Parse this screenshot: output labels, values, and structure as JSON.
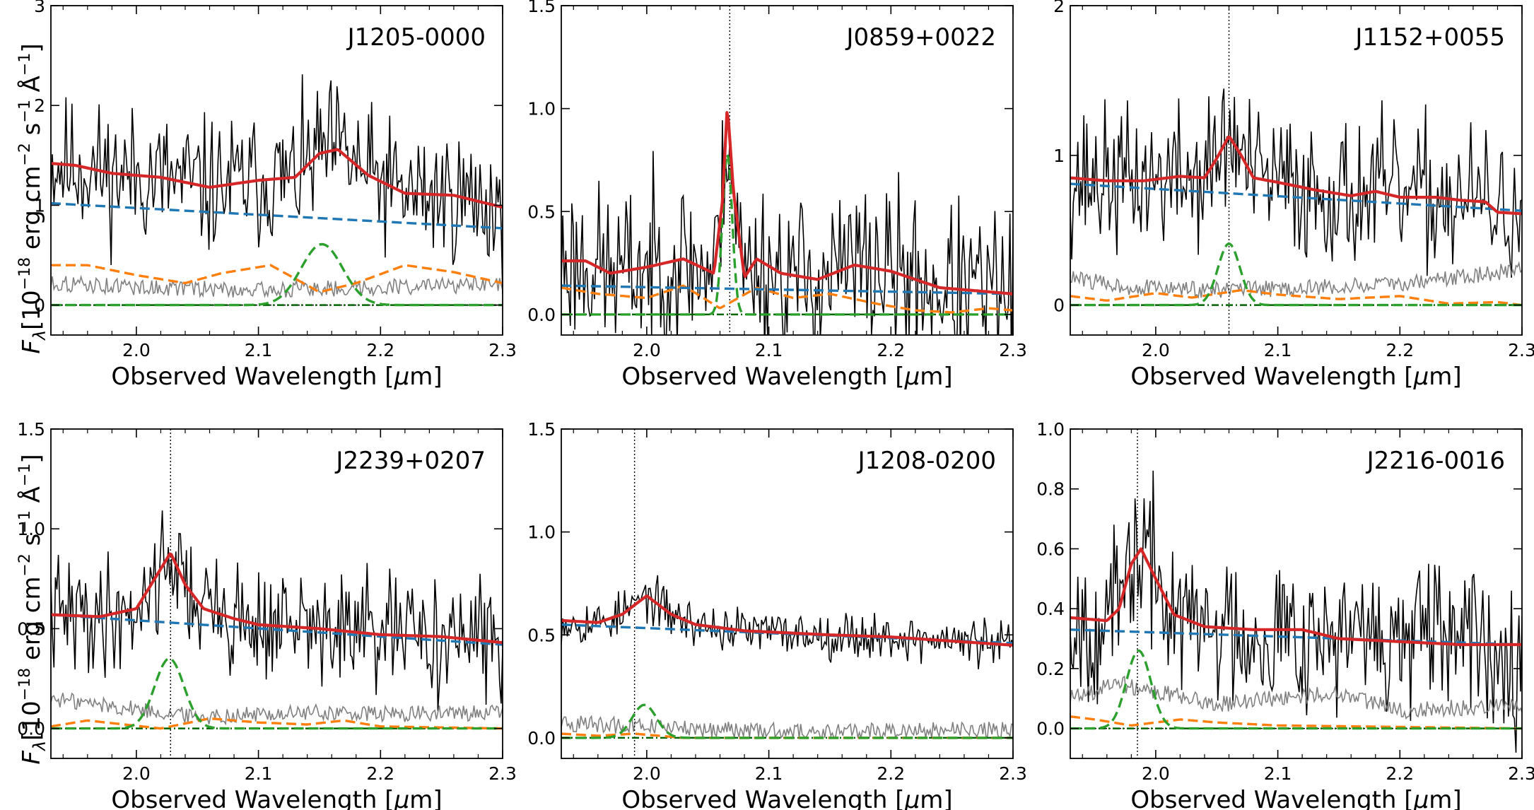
{
  "figure": {
    "ylabel_prefix": "F",
    "ylabel_sub": "λ",
    "ylabel_rest": "[10",
    "ylabel_exp": "−18",
    "ylabel_unit": " erg cm",
    "ylabel_cm_exp": "−2",
    "ylabel_s": " s",
    "ylabel_s_exp": "−1",
    "ylabel_A": " Å",
    "ylabel_A_exp": "−1",
    "ylabel_close": "]",
    "xlabel_text": "Observed Wavelength [",
    "xlabel_mu": "μ",
    "xlabel_unit": "m]"
  },
  "colors": {
    "data": "#000000",
    "noise": "#808080",
    "total_fit": "#d62728",
    "continuum": "#1f77b4",
    "feii": "#ff7f0e",
    "line": "#2ca02c",
    "zero": "#006400"
  },
  "chart_data": [
    {
      "type": "line",
      "title": "J1205-0000",
      "xlabel": "Observed Wavelength [μm]",
      "ylabel": "Fλ[10−18 erg cm−2 s−1 Å−1]",
      "xlim": [
        1.93,
        2.3
      ],
      "ylim": [
        -0.3,
        3.0
      ],
      "xticks": [
        2.0,
        2.1,
        2.2,
        2.3
      ],
      "xtick_labels": [
        "2.0",
        "2.1",
        "2.2",
        "2.3"
      ],
      "yticks": [
        0,
        1,
        2,
        3
      ],
      "ytick_labels": [
        "0",
        "1",
        "2",
        "3"
      ],
      "vline": null,
      "seed": 11,
      "data_noise": 0.42,
      "continuum": [
        1.02,
        0.77
      ],
      "fit_points": [
        [
          1.93,
          1.42
        ],
        [
          1.95,
          1.4
        ],
        [
          1.98,
          1.32
        ],
        [
          2.02,
          1.28
        ],
        [
          2.06,
          1.18
        ],
        [
          2.1,
          1.25
        ],
        [
          2.13,
          1.28
        ],
        [
          2.15,
          1.52
        ],
        [
          2.165,
          1.56
        ],
        [
          2.19,
          1.3
        ],
        [
          2.22,
          1.12
        ],
        [
          2.26,
          1.1
        ],
        [
          2.3,
          0.98
        ]
      ],
      "feii_points": [
        [
          1.93,
          0.4
        ],
        [
          1.96,
          0.4
        ],
        [
          2.0,
          0.3
        ],
        [
          2.04,
          0.22
        ],
        [
          2.07,
          0.32
        ],
        [
          2.11,
          0.4
        ],
        [
          2.15,
          0.13
        ],
        [
          2.18,
          0.22
        ],
        [
          2.22,
          0.4
        ],
        [
          2.26,
          0.33
        ],
        [
          2.3,
          0.22
        ]
      ],
      "noise_points": [
        [
          1.93,
          0.22
        ],
        [
          2.0,
          0.18
        ],
        [
          2.1,
          0.15
        ],
        [
          2.2,
          0.18
        ],
        [
          2.3,
          0.2
        ]
      ],
      "line_gauss": {
        "center": 2.152,
        "amp": 0.61,
        "sigma": 0.017
      },
      "zero_dotted": true
    },
    {
      "type": "line",
      "title": "J0859+0022",
      "xlabel": "Observed Wavelength [μm]",
      "ylabel": "Fλ[10−18 erg cm−2 s−1 Å−1]",
      "xlim": [
        1.93,
        2.3
      ],
      "ylim": [
        -0.1,
        1.5
      ],
      "xticks": [
        2.0,
        2.1,
        2.2,
        2.3
      ],
      "xtick_labels": [
        "2.0",
        "2.1",
        "2.2",
        "2.3"
      ],
      "yticks": [
        0.0,
        0.5,
        1.0,
        1.5
      ],
      "ytick_labels": [
        "0.0",
        "0.5",
        "1.0",
        "1.5"
      ],
      "vline": 2.068,
      "seed": 23,
      "data_noise": 0.25,
      "continuum": [
        0.14,
        0.1
      ],
      "fit_points": [
        [
          1.93,
          0.26
        ],
        [
          1.95,
          0.26
        ],
        [
          1.97,
          0.2
        ],
        [
          2.0,
          0.23
        ],
        [
          2.03,
          0.27
        ],
        [
          2.055,
          0.2
        ],
        [
          2.062,
          0.55
        ],
        [
          2.066,
          1.02
        ],
        [
          2.071,
          0.6
        ],
        [
          2.08,
          0.18
        ],
        [
          2.09,
          0.27
        ],
        [
          2.11,
          0.2
        ],
        [
          2.14,
          0.17
        ],
        [
          2.17,
          0.24
        ],
        [
          2.2,
          0.21
        ],
        [
          2.24,
          0.13
        ],
        [
          2.3,
          0.1
        ]
      ],
      "feii_points": [
        [
          1.93,
          0.13
        ],
        [
          1.96,
          0.1
        ],
        [
          2.0,
          0.08
        ],
        [
          2.03,
          0.14
        ],
        [
          2.06,
          0.03
        ],
        [
          2.09,
          0.13
        ],
        [
          2.12,
          0.08
        ],
        [
          2.15,
          0.1
        ],
        [
          2.19,
          0.05
        ],
        [
          2.22,
          0.02
        ],
        [
          2.25,
          0.01
        ],
        [
          2.28,
          0.03
        ],
        [
          2.3,
          0.02
        ]
      ],
      "noise_points": null,
      "line_gauss": {
        "center": 2.066,
        "amp": 0.78,
        "sigma": 0.004
      },
      "zero_dotted": false
    },
    {
      "type": "line",
      "title": "J1152+0055",
      "xlabel": "Observed Wavelength [μm]",
      "ylabel": "Fλ[10−18 erg cm−2 s−1 Å−1]",
      "xlim": [
        1.93,
        2.3
      ],
      "ylim": [
        -0.2,
        2.0
      ],
      "xticks": [
        2.0,
        2.1,
        2.2,
        2.3
      ],
      "xtick_labels": [
        "2.0",
        "2.1",
        "2.2",
        "2.3"
      ],
      "yticks": [
        0,
        1,
        2
      ],
      "ytick_labels": [
        "0",
        "1",
        "2"
      ],
      "vline": 2.06,
      "seed": 37,
      "data_noise": 0.3,
      "continuum": [
        0.81,
        0.63
      ],
      "fit_points": [
        [
          1.93,
          0.85
        ],
        [
          1.96,
          0.83
        ],
        [
          1.99,
          0.83
        ],
        [
          2.02,
          0.86
        ],
        [
          2.04,
          0.85
        ],
        [
          2.05,
          0.98
        ],
        [
          2.06,
          1.13
        ],
        [
          2.07,
          1.0
        ],
        [
          2.08,
          0.85
        ],
        [
          2.1,
          0.82
        ],
        [
          2.13,
          0.77
        ],
        [
          2.16,
          0.73
        ],
        [
          2.18,
          0.76
        ],
        [
          2.2,
          0.72
        ],
        [
          2.23,
          0.72
        ],
        [
          2.25,
          0.7
        ],
        [
          2.27,
          0.69
        ],
        [
          2.28,
          0.62
        ],
        [
          2.3,
          0.61
        ]
      ],
      "feii_points": [
        [
          1.93,
          0.06
        ],
        [
          1.96,
          0.03
        ],
        [
          2.0,
          0.08
        ],
        [
          2.03,
          0.05
        ],
        [
          2.07,
          0.1
        ],
        [
          2.1,
          0.07
        ],
        [
          2.15,
          0.04
        ],
        [
          2.2,
          0.06
        ],
        [
          2.24,
          0.01
        ],
        [
          2.28,
          0.02
        ],
        [
          2.3,
          0.0
        ]
      ],
      "noise_points": [
        [
          1.93,
          0.18
        ],
        [
          1.98,
          0.12
        ],
        [
          2.05,
          0.1
        ],
        [
          2.15,
          0.12
        ],
        [
          2.2,
          0.14
        ],
        [
          2.3,
          0.24
        ]
      ],
      "line_gauss": {
        "center": 2.06,
        "amp": 0.41,
        "sigma": 0.009
      },
      "zero_dotted": false
    },
    {
      "type": "line",
      "title": "J2239+0207",
      "xlabel": "Observed Wavelength [μm]",
      "ylabel": "Fλ[10−18 erg cm−2 s−1 Å−1]",
      "xlim": [
        1.93,
        2.3
      ],
      "ylim": [
        -0.15,
        1.5
      ],
      "xticks": [
        2.0,
        2.1,
        2.2,
        2.3
      ],
      "xtick_labels": [
        "2.0",
        "2.1",
        "2.2",
        "2.3"
      ],
      "yticks": [
        0.0,
        0.5,
        1.0,
        1.5
      ],
      "ytick_labels": [
        "0.0",
        "0.5",
        "1.0",
        "1.5"
      ],
      "vline": 2.028,
      "seed": 41,
      "data_noise": 0.18,
      "continuum": [
        0.57,
        0.42
      ],
      "fit_points": [
        [
          1.93,
          0.57
        ],
        [
          1.97,
          0.56
        ],
        [
          2.0,
          0.6
        ],
        [
          2.015,
          0.75
        ],
        [
          2.028,
          0.88
        ],
        [
          2.04,
          0.72
        ],
        [
          2.055,
          0.6
        ],
        [
          2.08,
          0.55
        ],
        [
          2.1,
          0.52
        ],
        [
          2.15,
          0.5
        ],
        [
          2.2,
          0.47
        ],
        [
          2.25,
          0.46
        ],
        [
          2.3,
          0.43
        ]
      ],
      "feii_points": [
        [
          1.93,
          0.01
        ],
        [
          1.96,
          0.04
        ],
        [
          1.99,
          0.02
        ],
        [
          2.02,
          0.0
        ],
        [
          2.06,
          0.05
        ],
        [
          2.1,
          0.03
        ],
        [
          2.14,
          0.02
        ],
        [
          2.17,
          0.04
        ],
        [
          2.2,
          0.01
        ],
        [
          2.3,
          0.0
        ]
      ],
      "noise_points": [
        [
          1.93,
          0.15
        ],
        [
          1.97,
          0.12
        ],
        [
          2.05,
          0.06
        ],
        [
          2.15,
          0.08
        ],
        [
          2.2,
          0.07
        ],
        [
          2.3,
          0.08
        ]
      ],
      "line_gauss": {
        "center": 2.027,
        "amp": 0.35,
        "sigma": 0.012
      },
      "zero_dotted": false
    },
    {
      "type": "line",
      "title": "J1208-0200",
      "xlabel": "Observed Wavelength [μm]",
      "ylabel": "Fλ[10−18 erg cm−2 s−1 Å−1]",
      "xlim": [
        1.93,
        2.3
      ],
      "ylim": [
        -0.1,
        1.5
      ],
      "xticks": [
        2.0,
        2.1,
        2.2,
        2.3
      ],
      "xtick_labels": [
        "2.0",
        "2.1",
        "2.2",
        "2.3"
      ],
      "yticks": [
        0.0,
        0.5,
        1.0,
        1.5
      ],
      "ytick_labels": [
        "0.0",
        "0.5",
        "1.0",
        "1.5"
      ],
      "vline": 1.99,
      "seed": 53,
      "data_noise": 0.07,
      "continuum": [
        0.55,
        0.46
      ],
      "fit_points": [
        [
          1.93,
          0.57
        ],
        [
          1.96,
          0.56
        ],
        [
          1.98,
          0.6
        ],
        [
          2.0,
          0.69
        ],
        [
          2.02,
          0.6
        ],
        [
          2.04,
          0.55
        ],
        [
          2.08,
          0.52
        ],
        [
          2.15,
          0.5
        ],
        [
          2.2,
          0.49
        ],
        [
          2.25,
          0.47
        ],
        [
          2.3,
          0.45
        ]
      ],
      "feii_points": [
        [
          1.93,
          0.02
        ],
        [
          1.96,
          0.01
        ],
        [
          1.99,
          0.02
        ],
        [
          2.03,
          0.0
        ],
        [
          2.3,
          0.0
        ]
      ],
      "noise_points": [
        [
          1.93,
          0.07
        ],
        [
          1.98,
          0.06
        ],
        [
          2.05,
          0.04
        ],
        [
          2.15,
          0.03
        ],
        [
          2.3,
          0.04
        ]
      ],
      "line_gauss": {
        "center": 1.998,
        "amp": 0.16,
        "sigma": 0.01
      },
      "zero_dotted": false
    },
    {
      "type": "line",
      "title": "J2216-0016",
      "xlabel": "Observed Wavelength [μm]",
      "ylabel": "Fλ[10−18 erg cm−2 s−1 Å−1]",
      "xlim": [
        1.93,
        2.3
      ],
      "ylim": [
        -0.1,
        1.0
      ],
      "xticks": [
        2.0,
        2.1,
        2.2,
        2.3
      ],
      "xtick_labels": [
        "2.0",
        "2.1",
        "2.2",
        "2.3"
      ],
      "yticks": [
        0.0,
        0.2,
        0.4,
        0.6,
        0.8,
        1.0
      ],
      "ytick_labels": [
        "0.0",
        "0.2",
        "0.4",
        "0.6",
        "0.8",
        "1.0"
      ],
      "vline": 1.985,
      "seed": 67,
      "data_noise": 0.16,
      "continuum": [
        0.33,
        0.28
      ],
      "fit_points": [
        [
          1.93,
          0.37
        ],
        [
          1.96,
          0.36
        ],
        [
          1.97,
          0.4
        ],
        [
          1.98,
          0.55
        ],
        [
          1.988,
          0.6
        ],
        [
          2.0,
          0.5
        ],
        [
          2.015,
          0.38
        ],
        [
          2.04,
          0.34
        ],
        [
          2.08,
          0.33
        ],
        [
          2.12,
          0.33
        ],
        [
          2.15,
          0.3
        ],
        [
          2.2,
          0.29
        ],
        [
          2.25,
          0.28
        ],
        [
          2.3,
          0.28
        ]
      ],
      "feii_points": [
        [
          1.93,
          0.04
        ],
        [
          1.95,
          0.03
        ],
        [
          1.98,
          0.01
        ],
        [
          2.02,
          0.03
        ],
        [
          2.05,
          0.02
        ],
        [
          2.1,
          0.01
        ],
        [
          2.3,
          0.0
        ]
      ],
      "noise_points": [
        [
          1.93,
          0.1
        ],
        [
          1.97,
          0.15
        ],
        [
          2.05,
          0.08
        ],
        [
          2.15,
          0.12
        ],
        [
          2.2,
          0.06
        ],
        [
          2.3,
          0.08
        ]
      ],
      "line_gauss": {
        "center": 1.986,
        "amp": 0.26,
        "sigma": 0.01
      },
      "zero_dotted": true
    }
  ]
}
